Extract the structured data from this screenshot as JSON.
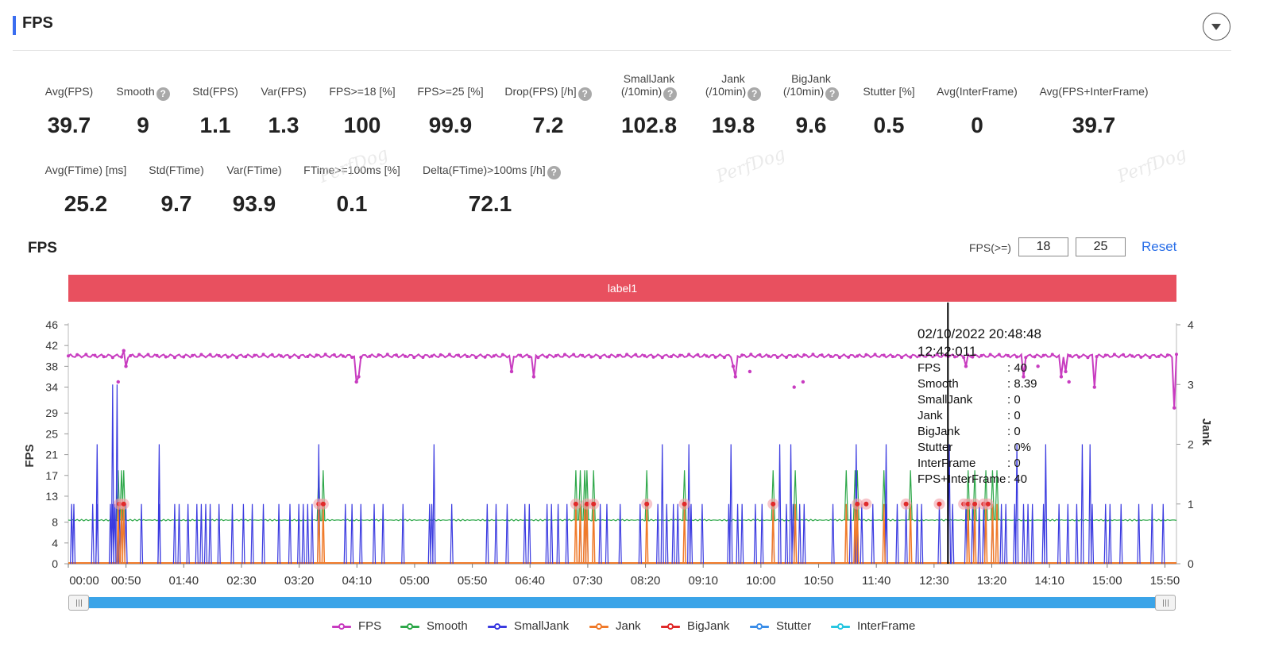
{
  "header": {
    "title": "FPS"
  },
  "metrics_row1": [
    {
      "label": "Avg(FPS)",
      "value": "39.7",
      "help": false
    },
    {
      "label": "Smooth",
      "value": "9",
      "help": true
    },
    {
      "label": "Std(FPS)",
      "value": "1.1",
      "help": false
    },
    {
      "label": "Var(FPS)",
      "value": "1.3",
      "help": false
    },
    {
      "label": "FPS>=18 [%]",
      "value": "100",
      "help": false
    },
    {
      "label": "FPS>=25 [%]",
      "value": "99.9",
      "help": false
    },
    {
      "label": "Drop(FPS) [/h]",
      "value": "7.2",
      "help": true
    },
    {
      "label": "SmallJank",
      "label2": "(/10min)",
      "value": "102.8",
      "help": true
    },
    {
      "label": "Jank",
      "label2": "(/10min)",
      "value": "19.8",
      "help": true
    },
    {
      "label": "BigJank",
      "label2": "(/10min)",
      "value": "9.6",
      "help": true
    },
    {
      "label": "Stutter [%]",
      "value": "0.5",
      "help": false
    },
    {
      "label": "Avg(InterFrame)",
      "value": "0",
      "help": false
    },
    {
      "label": "Avg(FPS+InterFrame)",
      "value": "39.7",
      "help": false
    }
  ],
  "metrics_row2": [
    {
      "label": "Avg(FTime) [ms]",
      "value": "25.2",
      "help": false
    },
    {
      "label": "Std(FTime)",
      "value": "9.7",
      "help": false
    },
    {
      "label": "Var(FTime)",
      "value": "93.9",
      "help": false
    },
    {
      "label": "FTime>=100ms [%]",
      "value": "0.1",
      "help": false
    },
    {
      "label": "Delta(FTime)>100ms [/h]",
      "value": "72.1",
      "help": true
    }
  ],
  "watermark": "PerfDog",
  "chart_section": {
    "title": "FPS",
    "threshold_label": "FPS(>=)",
    "threshold_low": "18",
    "threshold_high": "25",
    "reset_label": "Reset",
    "label_bar": "label1"
  },
  "tooltip": {
    "timestamp": "02/10/2022 20:48:48",
    "time": "12:42:011",
    "rows": [
      {
        "key": "FPS",
        "value": ": 40"
      },
      {
        "key": "Smooth",
        "value": ": 8.39"
      },
      {
        "key": "SmallJank",
        "value": ": 0"
      },
      {
        "key": "Jank",
        "value": ": 0"
      },
      {
        "key": "BigJank",
        "value": ": 0"
      },
      {
        "key": "Stutter",
        "value": ": 0%"
      },
      {
        "key": "InterFrame",
        "value": ": 0"
      },
      {
        "key": "FPS+InterFrame",
        "value": ": 40"
      }
    ]
  },
  "chart_data": {
    "type": "line",
    "ylabel_left": "FPS",
    "ylabel_right": "Jank",
    "y_left_ticks": [
      "0",
      "4",
      "8",
      "13",
      "17",
      "21",
      "25",
      "29",
      "34",
      "38",
      "42",
      "46"
    ],
    "y_right_ticks": [
      "0",
      "1",
      "2",
      "3",
      "4"
    ],
    "x_ticks": [
      "00:00",
      "00:50",
      "01:40",
      "02:30",
      "03:20",
      "04:10",
      "05:00",
      "05:50",
      "06:40",
      "07:30",
      "08:20",
      "09:10",
      "10:00",
      "10:50",
      "11:40",
      "12:30",
      "13:20",
      "14:10",
      "15:00",
      "15:50"
    ],
    "x_range_seconds": [
      0,
      1000
    ],
    "y_left_range": [
      0,
      46
    ],
    "y_right_range": [
      0,
      4
    ],
    "crosshair_time": "12:42",
    "legend": [
      {
        "name": "FPS",
        "color": "#c83cc0"
      },
      {
        "name": "Smooth",
        "color": "#2ea84a"
      },
      {
        "name": "SmallJank",
        "color": "#3a3ae0"
      },
      {
        "name": "Jank",
        "color": "#f07a2a"
      },
      {
        "name": "BigJank",
        "color": "#e02a2a"
      },
      {
        "name": "Stutter",
        "color": "#3c8ee8"
      },
      {
        "name": "InterFrame",
        "color": "#29c6e0"
      }
    ],
    "series_baselines": {
      "FPS": 40,
      "Smooth": 8.4,
      "SmallJank": 0,
      "Jank": 0,
      "BigJank": 0,
      "Stutter": 0,
      "InterFrame": 0
    },
    "fps_dips": [
      [
        45,
        35
      ],
      [
        50,
        41
      ],
      [
        52,
        38
      ],
      [
        260,
        35
      ],
      [
        262,
        36
      ],
      [
        400,
        37
      ],
      [
        420,
        36
      ],
      [
        600,
        38
      ],
      [
        602,
        36
      ],
      [
        615,
        37
      ],
      [
        655,
        34
      ],
      [
        663,
        35
      ],
      [
        810,
        38
      ],
      [
        862,
        36
      ],
      [
        875,
        38
      ],
      [
        896,
        36
      ],
      [
        900,
        37
      ],
      [
        903,
        35
      ],
      [
        926,
        34
      ],
      [
        998,
        30
      ]
    ],
    "smalljank_spikes_seconds": [
      3,
      5,
      22,
      26,
      38,
      40,
      42,
      46,
      48,
      52,
      66,
      82,
      96,
      100,
      108,
      116,
      120,
      124,
      128,
      136,
      148,
      158,
      166,
      176,
      190,
      200,
      208,
      212,
      216,
      220,
      250,
      256,
      264,
      276,
      284,
      302,
      326,
      328,
      346,
      378,
      386,
      396,
      412,
      416,
      432,
      436,
      442,
      450,
      462,
      466,
      468,
      480,
      486,
      498,
      516,
      532,
      540,
      546,
      550,
      562,
      572,
      596,
      604,
      608,
      620,
      626,
      636,
      648,
      654,
      660,
      664,
      690,
      706,
      712,
      716,
      726,
      738,
      748,
      756,
      766,
      770,
      786,
      798,
      810,
      816,
      822,
      826,
      834,
      842,
      846,
      854,
      862,
      866,
      870,
      880,
      894,
      902,
      910,
      924,
      936,
      940,
      950,
      966,
      978,
      988
    ],
    "smalljank_big_spikes": [
      [
        26,
        2
      ],
      [
        40,
        3
      ],
      [
        44,
        3
      ],
      [
        82,
        2
      ],
      [
        226,
        2
      ],
      [
        330,
        2
      ],
      [
        536,
        2
      ],
      [
        560,
        2
      ],
      [
        598,
        2
      ],
      [
        642,
        2
      ],
      [
        652,
        2
      ],
      [
        711,
        2
      ],
      [
        738,
        2
      ],
      [
        795,
        2
      ],
      [
        856,
        2
      ],
      [
        882,
        2
      ],
      [
        915,
        2
      ],
      [
        922,
        2
      ]
    ],
    "jank_spikes_seconds": [
      45,
      48,
      50,
      226,
      230,
      458,
      462,
      466,
      468,
      474,
      522,
      556,
      636,
      656,
      702,
      710,
      712,
      736,
      760,
      812,
      818,
      828,
      834,
      838
    ],
    "bigjank_events_seconds": [
      46,
      50,
      226,
      230,
      458,
      468,
      474,
      522,
      556,
      636,
      712,
      720,
      756,
      786,
      808,
      812,
      818,
      826,
      830
    ]
  }
}
